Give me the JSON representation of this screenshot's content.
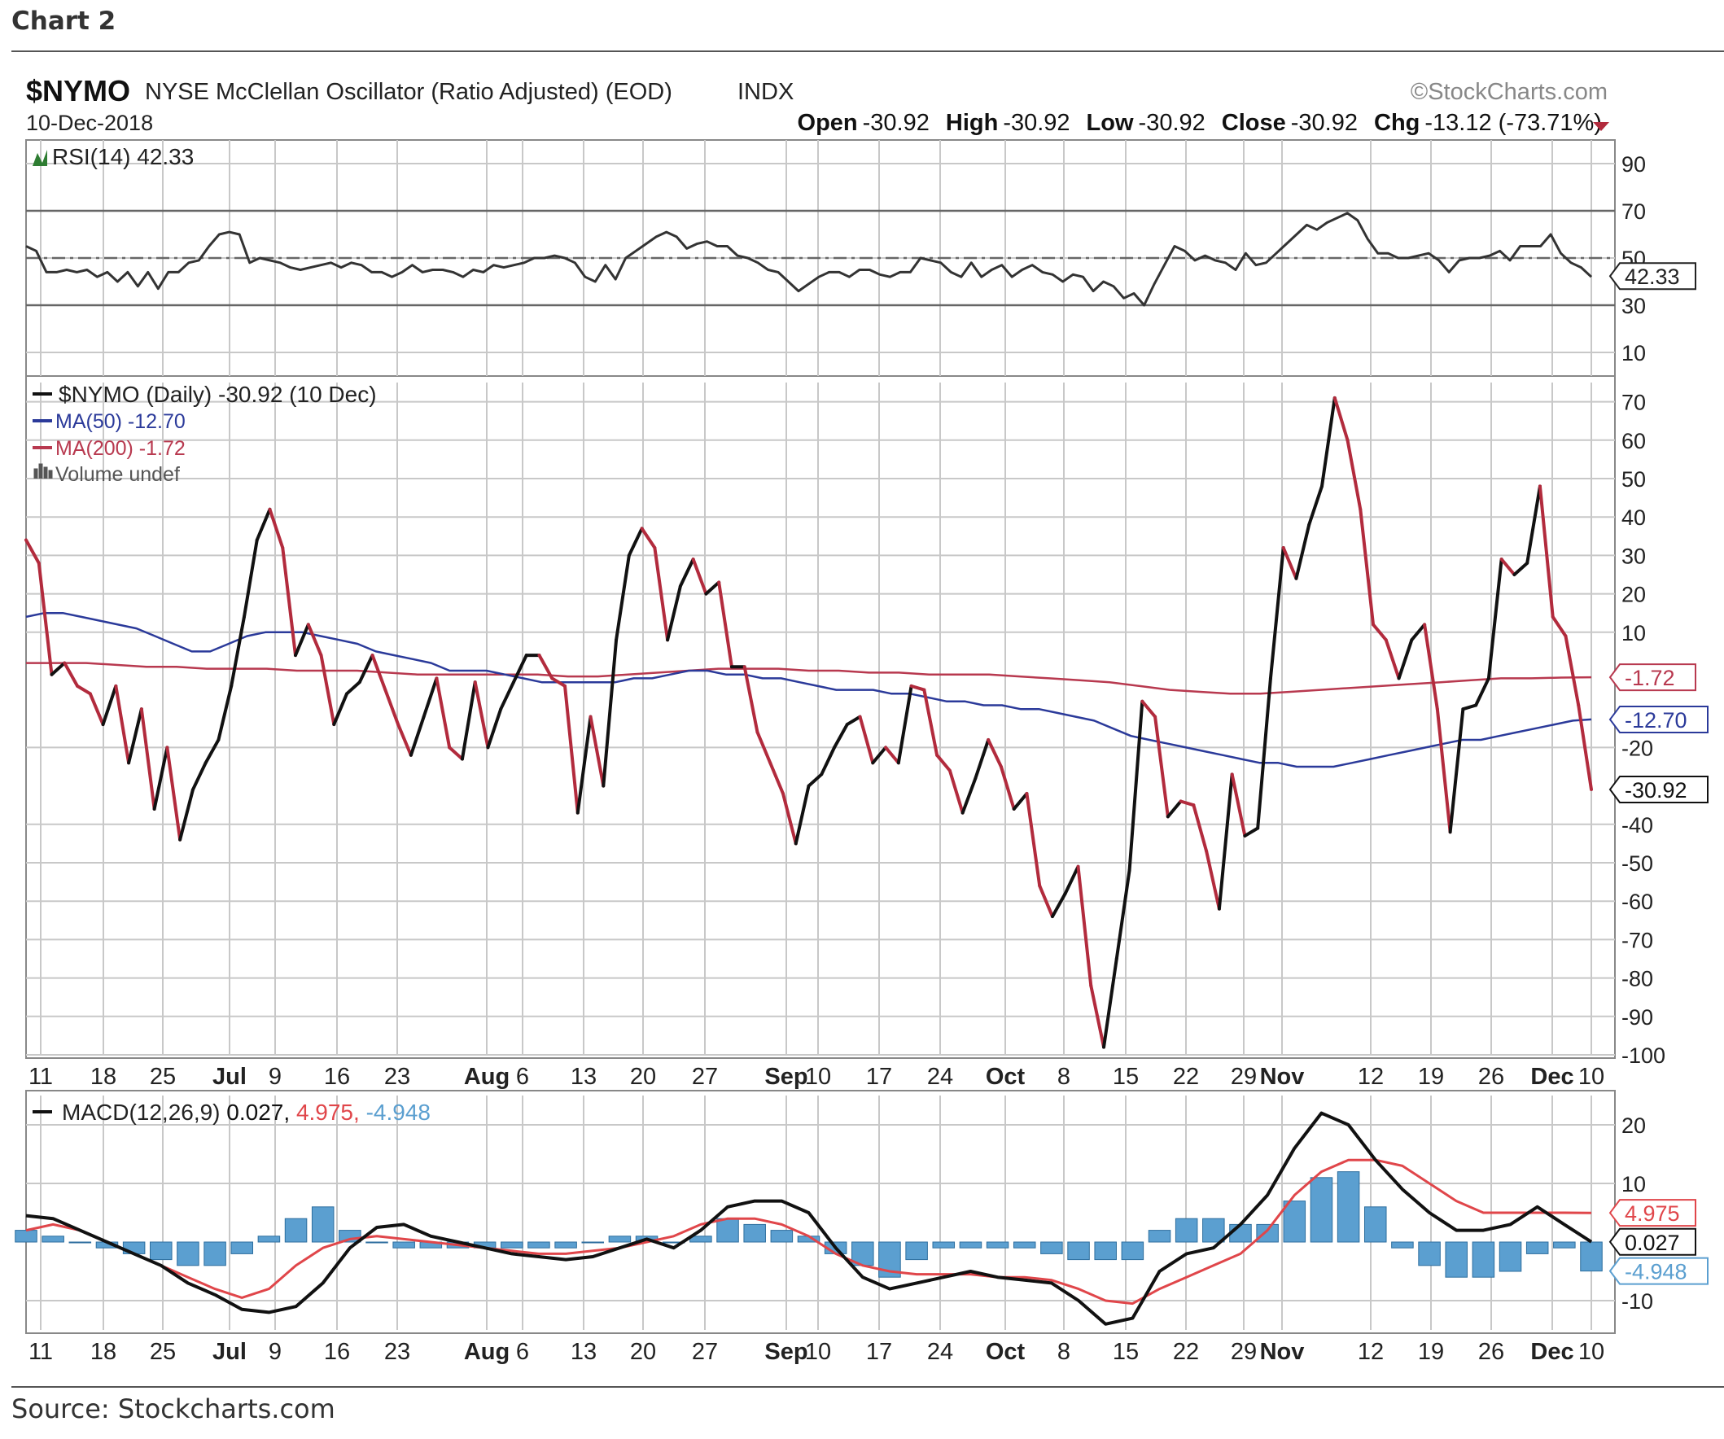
{
  "caption": "Chart 2",
  "source": "Source: Stockcharts.com",
  "header": {
    "symbol": "$NYMO",
    "name": "NYSE McClellan Oscillator (Ratio Adjusted) (EOD)",
    "exchange": "INDX",
    "watermark": "©StockCharts.com",
    "date": "10-Dec-2018",
    "open_label": "Open",
    "open_value": "-30.92",
    "high_label": "High",
    "high_value": "-30.92",
    "low_label": "Low",
    "low_value": "-30.92",
    "close_label": "Close",
    "close_value": "-30.92",
    "chg_label": "Chg",
    "chg_value": "-13.12 (-73.71%)"
  },
  "colors": {
    "price_up": "#111111",
    "price_down": "#b22b3d",
    "ma50": "#2b3a9a",
    "ma200": "#b8394f",
    "macd_signal": "#e0464a",
    "histogram": "#5b9fd0",
    "histogram_edge": "#2d6e9e",
    "grid": "#c8c8c8"
  },
  "chart_data": [
    {
      "type": "line",
      "title": "RSI(14) 42.33",
      "ylim": [
        0,
        100
      ],
      "y_ticks": [
        90,
        70,
        50,
        30,
        10
      ],
      "reference_lines": [
        70,
        50,
        30
      ],
      "last_value_label": "42.33",
      "series": [
        {
          "name": "RSI(14)",
          "values": [
            55,
            53,
            44,
            44,
            45,
            44,
            45,
            42,
            44,
            40,
            44,
            38,
            44,
            37,
            44,
            44,
            48,
            49,
            55,
            60,
            61,
            60,
            48,
            50,
            49,
            48,
            46,
            45,
            46,
            47,
            48,
            46,
            48,
            47,
            44,
            44,
            42,
            44,
            47,
            44,
            45,
            45,
            44,
            42,
            45,
            44,
            47,
            46,
            47,
            48,
            50,
            50,
            51,
            50,
            48,
            42,
            40,
            47,
            41,
            50,
            53,
            56,
            59,
            61,
            59,
            54,
            56,
            57,
            55,
            55,
            51,
            50,
            48,
            45,
            44,
            40,
            36,
            39,
            42,
            44,
            44,
            42,
            45,
            45,
            43,
            42,
            44,
            44,
            50,
            49,
            48,
            44,
            42,
            48,
            42,
            45,
            47,
            42,
            45,
            47,
            44,
            43,
            40,
            43,
            42,
            36,
            40,
            38,
            33,
            35,
            30,
            39,
            47,
            55,
            53,
            49,
            51,
            49,
            48,
            45,
            52,
            47,
            48,
            52,
            56,
            60,
            64,
            62,
            65,
            67,
            69,
            66,
            58,
            52,
            52,
            50,
            50,
            51,
            52,
            49,
            44,
            49,
            50,
            50,
            51,
            53,
            49,
            55,
            55,
            55,
            60,
            52,
            48,
            46,
            42
          ]
        }
      ],
      "x_ticks": [
        "11",
        "18",
        "25",
        "Jul",
        "9",
        "16",
        "23",
        "Aug",
        "6",
        "13",
        "20",
        "27",
        "Sep",
        "10",
        "17",
        "24",
        "Oct",
        "8",
        "15",
        "22",
        "29",
        "Nov",
        "12",
        "19",
        "26",
        "Dec",
        "10"
      ]
    },
    {
      "type": "line",
      "title": "$NYMO (Daily) -30.92 (10 Dec)",
      "ylim": [
        -100,
        75
      ],
      "y_ticks": [
        70,
        60,
        50,
        40,
        30,
        20,
        10,
        -20,
        -40,
        -50,
        -60,
        -70,
        -80,
        -90,
        -100
      ],
      "legend": [
        {
          "label": "$NYMO (Daily) -30.92 (10 Dec)",
          "color": "#111111"
        },
        {
          "label": "MA(50) -12.70",
          "color": "#2b3a9a"
        },
        {
          "label": "MA(200) -1.72",
          "color": "#b8394f"
        },
        {
          "label": "Volume undef",
          "color": "#555555"
        }
      ],
      "value_labels": [
        {
          "text": "-1.72",
          "value": -1.72,
          "color": "#b8394f"
        },
        {
          "text": "-12.70",
          "value": -12.7,
          "color": "#2b3a9a"
        },
        {
          "text": "-30.92",
          "value": -30.92,
          "color": "#111111"
        }
      ],
      "x_ticks": [
        "11",
        "18",
        "25",
        "Jul",
        "9",
        "16",
        "23",
        "Aug",
        "6",
        "13",
        "20",
        "27",
        "Sep",
        "10",
        "17",
        "24",
        "Oct",
        "8",
        "15",
        "22",
        "29",
        "Nov",
        "12",
        "19",
        "26",
        "Dec",
        "10"
      ],
      "series": [
        {
          "name": "$NYMO (Daily)",
          "values": [
            34,
            28,
            -1,
            2,
            -4,
            -6,
            -14,
            -4,
            -24,
            -10,
            -36,
            -20,
            -44,
            -31,
            -24,
            -18,
            -4,
            14,
            34,
            42,
            32,
            4,
            12,
            4,
            -14,
            -6,
            -3,
            4,
            -5,
            -14,
            -22,
            -12,
            -2,
            -20,
            -23,
            -3,
            -20,
            -10,
            -3,
            4,
            4,
            -2,
            -4,
            -37,
            -12,
            -30,
            8,
            30,
            37,
            32,
            8,
            22,
            29,
            20,
            23,
            1,
            1,
            -16,
            -24,
            -32,
            -45,
            -30,
            -27,
            -20,
            -14,
            -12,
            -24,
            -20,
            -24,
            -4,
            -5,
            -22,
            -26,
            -37,
            -28,
            -18,
            -25,
            -36,
            -32,
            -56,
            -64,
            -58,
            -51,
            -82,
            -98,
            -75,
            -52,
            -8,
            -12,
            -38,
            -34,
            -35,
            -47,
            -62,
            -27,
            -43,
            -41,
            -2,
            32,
            24,
            38,
            48,
            71,
            60,
            42,
            12,
            8,
            -2,
            8,
            12,
            -10,
            -42,
            -10,
            -9,
            -2,
            29,
            25,
            28,
            48,
            14,
            9,
            -9,
            -30.92
          ]
        },
        {
          "name": "MA(50)",
          "values": [
            14,
            15,
            15,
            14,
            13,
            12,
            11,
            9,
            7,
            5,
            5,
            7,
            9,
            10,
            10,
            10,
            9,
            8,
            7,
            5,
            4,
            3,
            2,
            0,
            0,
            0,
            -1,
            -2,
            -3,
            -3,
            -3,
            -3,
            -3,
            -2,
            -2,
            -1,
            0,
            0,
            -1,
            -1,
            -2,
            -2,
            -3,
            -4,
            -5,
            -5,
            -5,
            -6,
            -6,
            -7,
            -8,
            -8,
            -9,
            -9,
            -10,
            -10,
            -11,
            -12,
            -13,
            -15,
            -17,
            -18,
            -19,
            -20,
            -21,
            -22,
            -23,
            -24,
            -24,
            -25,
            -25,
            -25,
            -24,
            -23,
            -22,
            -21,
            -20,
            -19,
            -18,
            -18,
            -17,
            -16,
            -15,
            -14,
            -13,
            -12.7
          ]
        },
        {
          "name": "MA(200)",
          "values": [
            2,
            2,
            2,
            1.5,
            1,
            1,
            0.5,
            0.5,
            0.5,
            0,
            0,
            0,
            -0.5,
            -1,
            -1,
            -1,
            -1,
            -1,
            -1.5,
            -1.5,
            -1,
            -0.5,
            0,
            0.5,
            0.5,
            0.5,
            0,
            0,
            -0.5,
            -0.5,
            -1,
            -1,
            -1,
            -1.5,
            -2,
            -2.5,
            -3,
            -4,
            -5,
            -5.5,
            -6,
            -6,
            -5.5,
            -5,
            -4.5,
            -4,
            -3.5,
            -3,
            -2.5,
            -2,
            -2,
            -1.8,
            -1.72
          ]
        }
      ]
    },
    {
      "type": "line",
      "title": "MACD(12,26,9) 0.027, 4.975, -4.948",
      "title_parts": {
        "label": "MACD(12,26,9)",
        "macd": "0.027,",
        "signal": "4.975,",
        "histogram": "-4.948"
      },
      "ylim": [
        -15,
        25
      ],
      "y_ticks": [
        20,
        10,
        -10
      ],
      "value_labels": [
        {
          "text": "4.975",
          "value": 4.975,
          "color": "#e0464a"
        },
        {
          "text": "0.027",
          "value": 0.027,
          "color": "#111111"
        },
        {
          "text": "-4.948",
          "value": -4.948,
          "color": "#5b9fd0"
        }
      ],
      "x_ticks": [
        "11",
        "18",
        "25",
        "Jul",
        "9",
        "16",
        "23",
        "Aug",
        "6",
        "13",
        "20",
        "27",
        "Sep",
        "10",
        "17",
        "24",
        "Oct",
        "8",
        "15",
        "22",
        "29",
        "Nov",
        "12",
        "19",
        "26",
        "Dec",
        "10"
      ],
      "series": [
        {
          "name": "MACD",
          "values": [
            4.5,
            4,
            2,
            0,
            -2,
            -4,
            -7,
            -9,
            -11.5,
            -12,
            -11,
            -7,
            -1,
            2.5,
            3,
            1,
            0,
            -1,
            -2,
            -2.5,
            -3,
            -2.5,
            -1,
            0.5,
            -1,
            2,
            6,
            7,
            7,
            5,
            -1,
            -6,
            -8,
            -7,
            -6,
            -5,
            -6,
            -6.5,
            -7,
            -10,
            -14,
            -13,
            -5,
            -2,
            -1,
            3,
            8,
            16,
            22,
            20,
            14,
            9,
            5,
            2,
            2,
            3,
            6,
            3,
            0.027
          ]
        },
        {
          "name": "Signal",
          "values": [
            2,
            3,
            2,
            0,
            -2,
            -4,
            -6,
            -8,
            -9.5,
            -8,
            -4,
            -1,
            0.5,
            1,
            0.5,
            0,
            -0.5,
            -1,
            -1.5,
            -2,
            -2,
            -1.5,
            -1,
            0,
            1,
            3,
            4,
            4,
            3,
            1,
            -2,
            -4,
            -5,
            -5.5,
            -5.5,
            -5.5,
            -6,
            -6,
            -6.5,
            -8,
            -10,
            -10.5,
            -8,
            -6,
            -4,
            -2,
            2,
            8,
            12,
            14,
            14,
            13,
            10,
            7,
            5,
            5,
            5,
            5,
            4.975
          ]
        },
        {
          "name": "Histogram",
          "values": [
            2,
            1,
            0,
            -1,
            -2,
            -3,
            -4,
            -4,
            -2,
            1,
            4,
            6,
            2,
            0,
            -1,
            -1,
            -1,
            -1,
            -1,
            -1,
            -1,
            0,
            1,
            1,
            0,
            1,
            4,
            3,
            2,
            1,
            -2,
            -4,
            -6,
            -3,
            -1,
            -1,
            -1,
            -1,
            -2,
            -3,
            -3,
            -3,
            2,
            4,
            4,
            3,
            3,
            7,
            11,
            12,
            6,
            -1,
            -4,
            -6,
            -6,
            -5,
            -2,
            -1,
            -4.948
          ]
        }
      ]
    }
  ]
}
